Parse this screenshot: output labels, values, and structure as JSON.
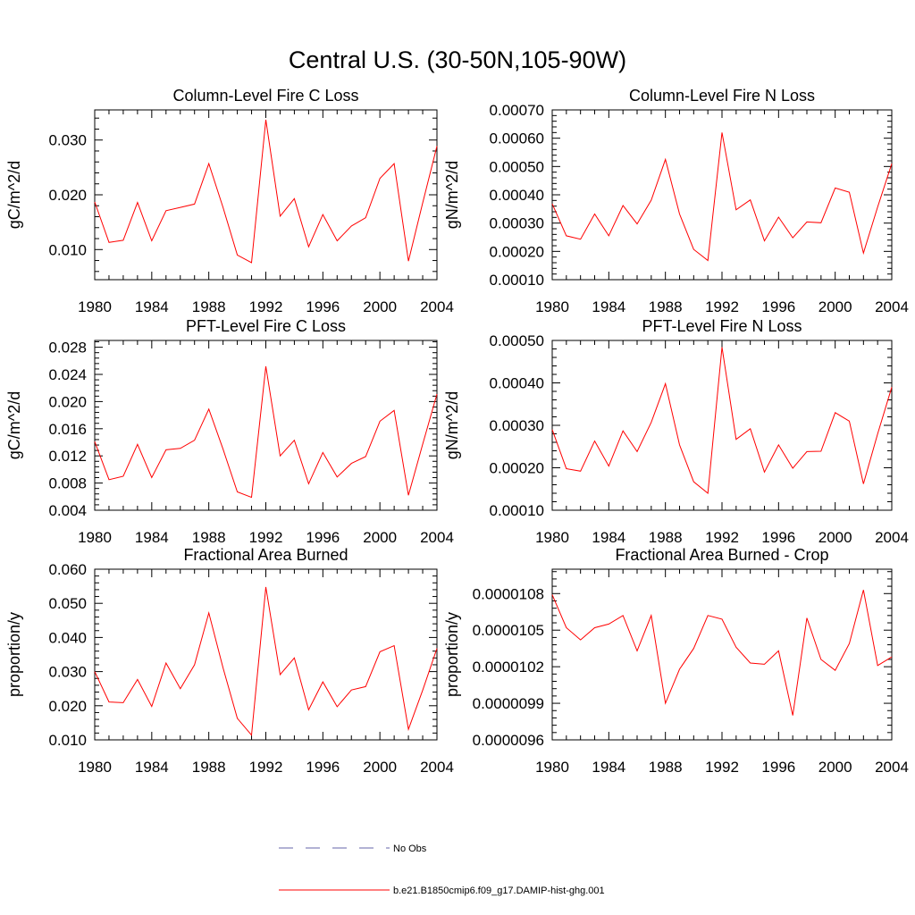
{
  "figure": {
    "title": "Central U.S. (30-50N,105-90W)"
  },
  "colors": {
    "model_line": "#ff0000",
    "obs_line": "#6666aa",
    "axis": "#000000"
  },
  "legend": {
    "entries": [
      {
        "label": "No Obs",
        "style": "dashed",
        "color": "#6666aa"
      },
      {
        "label": "b.e21.B1850cmip6.f09_g17.DAMIP-hist-ghg.001",
        "style": "solid",
        "color": "#ff0000"
      }
    ]
  },
  "chart_data": [
    {
      "type": "line",
      "title": "Column-Level Fire C Loss",
      "xlabel": "",
      "ylabel": "gC/m^2/d",
      "xlim": [
        1980,
        2004
      ],
      "ylim": [
        0.0045,
        0.0355
      ],
      "xticks": [
        1980,
        1984,
        1988,
        1992,
        1996,
        2000,
        2004
      ],
      "xtick_labels": [
        "1980",
        "1984",
        "1988",
        "1992",
        "1996",
        "2000",
        "2004"
      ],
      "yticks": [
        0.01,
        0.02,
        0.03
      ],
      "ytick_labels": [
        "0.010",
        "0.020",
        "0.030"
      ],
      "x": [
        1980,
        1981,
        1982,
        1983,
        1984,
        1985,
        1986,
        1987,
        1988,
        1989,
        1990,
        1991,
        1992,
        1993,
        1994,
        1995,
        1996,
        1997,
        1998,
        1999,
        2000,
        2001,
        2002,
        2003,
        2004
      ],
      "series": [
        {
          "name": "b.e21.B1850cmip6.f09_g17.DAMIP-hist-ghg.001",
          "values": [
            0.0187,
            0.0113,
            0.0117,
            0.0186,
            0.0116,
            0.0171,
            0.0177,
            0.0183,
            0.0257,
            0.0177,
            0.009,
            0.0076,
            0.0337,
            0.0161,
            0.0193,
            0.0105,
            0.0164,
            0.0116,
            0.0143,
            0.0158,
            0.023,
            0.0257,
            0.0079,
            0.0185,
            0.0289
          ]
        }
      ]
    },
    {
      "type": "line",
      "title": "Column-Level Fire N Loss",
      "xlabel": "",
      "ylabel": "gN/m^2/d",
      "xlim": [
        1980,
        2004
      ],
      "ylim": [
        0.0001,
        0.0007
      ],
      "xticks": [
        1980,
        1984,
        1988,
        1992,
        1996,
        2000,
        2004
      ],
      "xtick_labels": [
        "1980",
        "1984",
        "1988",
        "1992",
        "1996",
        "2000",
        "2004"
      ],
      "yticks": [
        0.0001,
        0.0002,
        0.0003,
        0.0004,
        0.0005,
        0.0006,
        0.0007
      ],
      "ytick_labels": [
        "0.00010",
        "0.00020",
        "0.00030",
        "0.00040",
        "0.00050",
        "0.00060",
        "0.00070"
      ],
      "x": [
        1980,
        1981,
        1982,
        1983,
        1984,
        1985,
        1986,
        1987,
        1988,
        1989,
        1990,
        1991,
        1992,
        1993,
        1994,
        1995,
        1996,
        1997,
        1998,
        1999,
        2000,
        2001,
        2002,
        2003,
        2004
      ],
      "series": [
        {
          "name": "b.e21.B1850cmip6.f09_g17.DAMIP-hist-ghg.001",
          "values": [
            0.000368,
            0.000255,
            0.000243,
            0.000332,
            0.000255,
            0.000362,
            0.000297,
            0.000381,
            0.000525,
            0.000332,
            0.000207,
            0.000168,
            0.00062,
            0.000347,
            0.000382,
            0.000237,
            0.000321,
            0.000248,
            0.000304,
            0.000301,
            0.000424,
            0.000409,
            0.000194,
            0.000357,
            0.00051
          ]
        }
      ]
    },
    {
      "type": "line",
      "title": "PFT-Level Fire C Loss",
      "xlabel": "",
      "ylabel": "gC/m^2/d",
      "xlim": [
        1980,
        2004
      ],
      "ylim": [
        0.004,
        0.029
      ],
      "xticks": [
        1980,
        1984,
        1988,
        1992,
        1996,
        2000,
        2004
      ],
      "xtick_labels": [
        "1980",
        "1984",
        "1988",
        "1992",
        "1996",
        "2000",
        "2004"
      ],
      "yticks": [
        0.004,
        0.008,
        0.012,
        0.016,
        0.02,
        0.024,
        0.028
      ],
      "ytick_labels": [
        "0.004",
        "0.008",
        "0.012",
        "0.016",
        "0.020",
        "0.024",
        "0.028"
      ],
      "x": [
        1980,
        1981,
        1982,
        1983,
        1984,
        1985,
        1986,
        1987,
        1988,
        1989,
        1990,
        1991,
        1992,
        1993,
        1994,
        1995,
        1996,
        1997,
        1998,
        1999,
        2000,
        2001,
        2002,
        2003,
        2004
      ],
      "series": [
        {
          "name": "b.e21.B1850cmip6.f09_g17.DAMIP-hist-ghg.001",
          "values": [
            0.0141,
            0.0085,
            0.009,
            0.0137,
            0.0088,
            0.0129,
            0.0131,
            0.0143,
            0.0189,
            0.013,
            0.0067,
            0.0059,
            0.0252,
            0.012,
            0.0143,
            0.0079,
            0.0125,
            0.0089,
            0.0109,
            0.0119,
            0.0171,
            0.0187,
            0.0062,
            0.0137,
            0.0211
          ]
        }
      ]
    },
    {
      "type": "line",
      "title": "PFT-Level Fire N Loss",
      "xlabel": "",
      "ylabel": "gN/m^2/d",
      "xlim": [
        1980,
        2004
      ],
      "ylim": [
        0.0001,
        0.0005
      ],
      "xticks": [
        1980,
        1984,
        1988,
        1992,
        1996,
        2000,
        2004
      ],
      "xtick_labels": [
        "1980",
        "1984",
        "1988",
        "1992",
        "1996",
        "2000",
        "2004"
      ],
      "yticks": [
        0.0001,
        0.0002,
        0.0003,
        0.0004,
        0.0005
      ],
      "ytick_labels": [
        "0.00010",
        "0.00020",
        "0.00030",
        "0.00040",
        "0.00050"
      ],
      "x": [
        1980,
        1981,
        1982,
        1983,
        1984,
        1985,
        1986,
        1987,
        1988,
        1989,
        1990,
        1991,
        1992,
        1993,
        1994,
        1995,
        1996,
        1997,
        1998,
        1999,
        2000,
        2001,
        2002,
        2003,
        2004
      ],
      "series": [
        {
          "name": "b.e21.B1850cmip6.f09_g17.DAMIP-hist-ghg.001",
          "values": [
            0.00029,
            0.000198,
            0.000192,
            0.000263,
            0.000204,
            0.000287,
            0.000238,
            0.000307,
            0.000398,
            0.000254,
            0.000167,
            0.00014,
            0.000484,
            0.000267,
            0.000292,
            0.00019,
            0.000254,
            0.000199,
            0.000238,
            0.000239,
            0.00033,
            0.00031,
            0.000162,
            0.00028,
            0.00039
          ]
        }
      ]
    },
    {
      "type": "line",
      "title": "Fractional Area Burned",
      "xlabel": "",
      "ylabel": "proportion/y",
      "xlim": [
        1980,
        2004
      ],
      "ylim": [
        0.01,
        0.06
      ],
      "xticks": [
        1980,
        1984,
        1988,
        1992,
        1996,
        2000,
        2004
      ],
      "xtick_labels": [
        "1980",
        "1984",
        "1988",
        "1992",
        "1996",
        "2000",
        "2004"
      ],
      "yticks": [
        0.01,
        0.02,
        0.03,
        0.04,
        0.05,
        0.06
      ],
      "ytick_labels": [
        "0.010",
        "0.020",
        "0.030",
        "0.040",
        "0.050",
        "0.060"
      ],
      "x": [
        1980,
        1981,
        1982,
        1983,
        1984,
        1985,
        1986,
        1987,
        1988,
        1989,
        1990,
        1991,
        1992,
        1993,
        1994,
        1995,
        1996,
        1997,
        1998,
        1999,
        2000,
        2001,
        2002,
        2003,
        2004
      ],
      "series": [
        {
          "name": "b.e21.B1850cmip6.f09_g17.DAMIP-hist-ghg.001",
          "values": [
            0.03,
            0.0211,
            0.0209,
            0.0277,
            0.0198,
            0.0325,
            0.025,
            0.032,
            0.0472,
            0.0311,
            0.0163,
            0.0114,
            0.0548,
            0.0291,
            0.034,
            0.0188,
            0.027,
            0.0197,
            0.0246,
            0.0256,
            0.0358,
            0.0376,
            0.0131,
            0.0245,
            0.0368
          ]
        }
      ]
    },
    {
      "type": "line",
      "title": "Fractional Area Burned - Crop",
      "xlabel": "",
      "ylabel": "proportion/y",
      "xlim": [
        1980,
        2004
      ],
      "ylim": [
        9.6e-06,
        1.1e-05
      ],
      "xticks": [
        1980,
        1984,
        1988,
        1992,
        1996,
        2000,
        2004
      ],
      "xtick_labels": [
        "1980",
        "1984",
        "1988",
        "1992",
        "1996",
        "2000",
        "2004"
      ],
      "yticks": [
        9.6e-06,
        9.9e-06,
        1.02e-05,
        1.05e-05,
        1.08e-05
      ],
      "ytick_labels": [
        "0.0000096",
        "0.0000099",
        "0.0000102",
        "0.0000105",
        "0.0000108"
      ],
      "x": [
        1980,
        1981,
        1982,
        1983,
        1984,
        1985,
        1986,
        1987,
        1988,
        1989,
        1990,
        1991,
        1992,
        1993,
        1994,
        1995,
        1996,
        1997,
        1998,
        1999,
        2000,
        2001,
        2002,
        2003,
        2004
      ],
      "series": [
        {
          "name": "b.e21.B1850cmip6.f09_g17.DAMIP-hist-ghg.001",
          "values": [
            1.079e-05,
            1.052e-05,
            1.042e-05,
            1.052e-05,
            1.055e-05,
            1.062e-05,
            1.033e-05,
            1.062e-05,
            9.9e-06,
            1.018e-05,
            1.035e-05,
            1.062e-05,
            1.059e-05,
            1.036e-05,
            1.023e-05,
            1.022e-05,
            1.033e-05,
            9.8e-06,
            1.06e-05,
            1.026e-05,
            1.017e-05,
            1.039e-05,
            1.083e-05,
            1.021e-05,
            1.028e-05
          ]
        }
      ]
    }
  ]
}
